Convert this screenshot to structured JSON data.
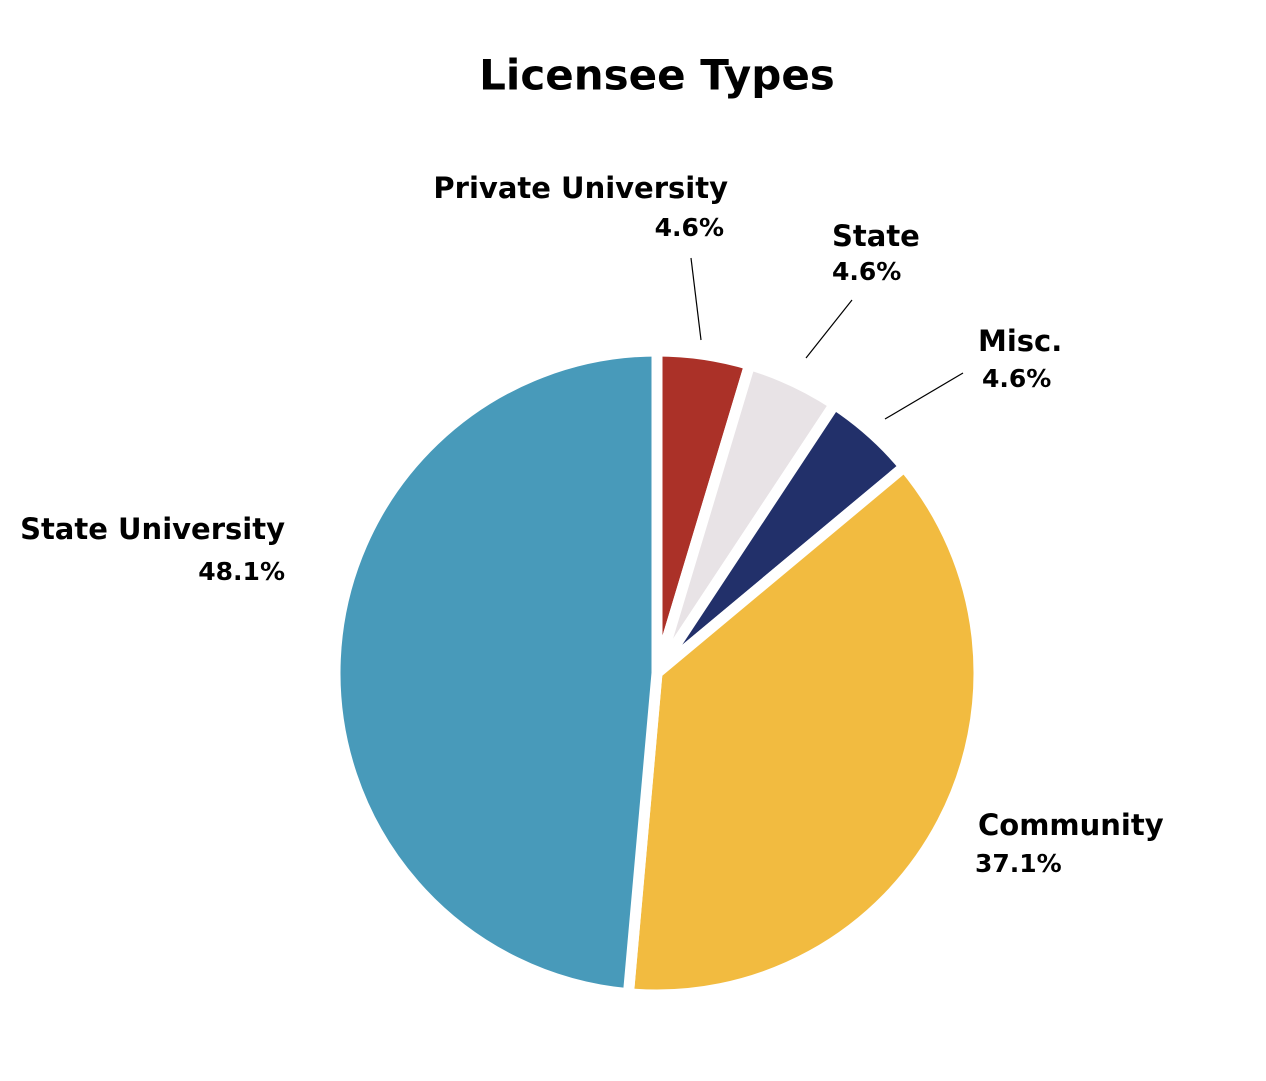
{
  "chart_data": {
    "type": "pie",
    "title": "Licensee Types",
    "categories": [
      "Private University",
      "State",
      "Misc.",
      "Community",
      "State University"
    ],
    "values": [
      4.6,
      4.6,
      4.6,
      37.1,
      48.1
    ],
    "value_labels": [
      "4.6%",
      "4.6%",
      "4.6%",
      "37.1%",
      "48.1%"
    ],
    "colors": [
      "#ab3128",
      "#e8e3e6",
      "#22306a",
      "#f2bb40",
      "#489aba"
    ]
  }
}
